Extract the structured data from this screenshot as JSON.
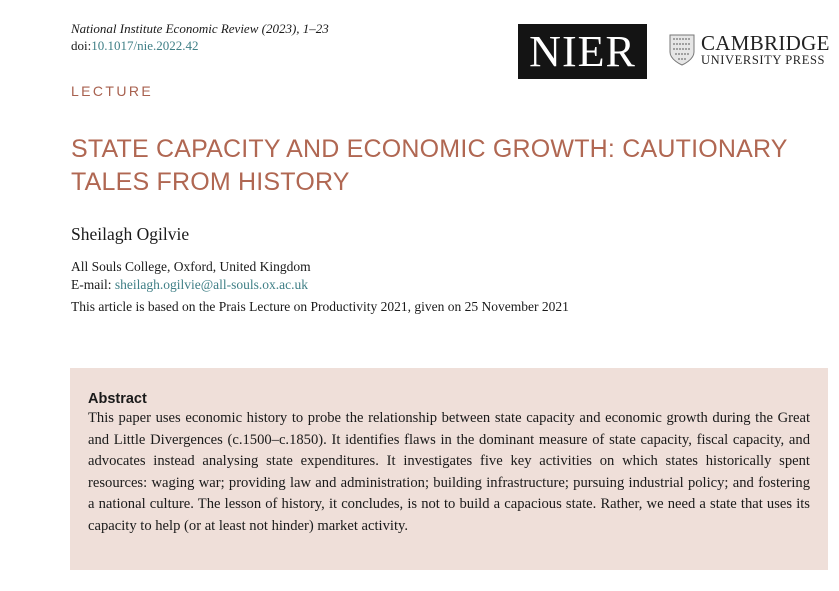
{
  "header": {
    "journal": "National Institute Economic Review (2023), 1–23",
    "doi_prefix": "doi:",
    "doi": "10.1017/nie.2022.42",
    "logos": {
      "nier": "NIER",
      "cambridge_line1": "CAMBRIDGE",
      "cambridge_line2": "UNIVERSITY PRESS"
    }
  },
  "article": {
    "section": "LECTURE",
    "title": "STATE CAPACITY AND ECONOMIC GROWTH: CAUTIONARY TALES FROM HISTORY",
    "author": "Sheilagh Ogilvie",
    "affiliation": "All Souls College, Oxford, United Kingdom",
    "email_label": "E-mail: ",
    "email": "sheilagh.ogilvie@all-souls.ox.ac.uk",
    "note": "This article is based on the Prais Lecture on Productivity 2021, given on 25 November 2021"
  },
  "abstract": {
    "heading": "Abstract",
    "text": "This paper uses economic history to probe the relationship between state capacity and economic growth during the Great and Little Divergences (c.1500–c.1850). It identifies flaws in the dominant measure of state capacity, fiscal capacity, and advocates instead analysing state expenditures. It investigates five key activities on which states historically spent resources: waging war; providing law and administration; building infrastructure; pursuing industrial policy; and fostering a national culture. The lesson of history, it concludes, is not to build a capacious state. Rather, we need a state that uses its capacity to help (or at least not hinder) market activity."
  },
  "colors": {
    "accent": "#b06752",
    "link": "#3f7f86",
    "abstract_bg": "#efdfd9"
  }
}
